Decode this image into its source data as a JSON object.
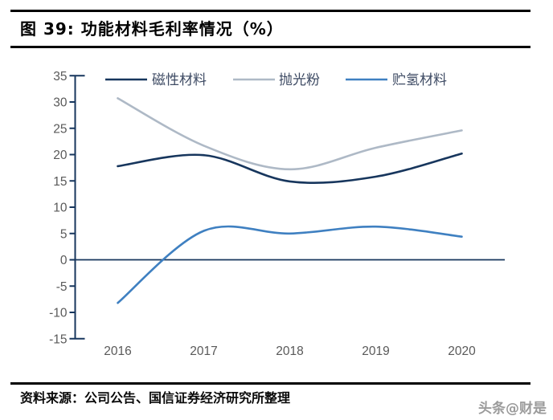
{
  "figure": {
    "title": "图 39: 功能材料毛利率情况（%）",
    "source": "资料来源：公司公告、国信证券经济研究所整理",
    "watermark": "头条@财是"
  },
  "chart_data": {
    "type": "line",
    "title": "功能材料毛利率情况（%）",
    "categories": [
      "2016",
      "2017",
      "2018",
      "2019",
      "2020"
    ],
    "series": [
      {
        "name": "磁性材料",
        "color": "#17365d",
        "values": [
          17.8,
          19.9,
          14.9,
          15.8,
          20.2
        ]
      },
      {
        "name": "抛光粉",
        "color": "#aeb9c6",
        "values": [
          30.7,
          21.7,
          17.2,
          21.3,
          24.6
        ]
      },
      {
        "name": "贮氢材料",
        "color": "#3f80c1",
        "values": [
          -8.2,
          5.5,
          5.0,
          6.3,
          4.4
        ]
      }
    ],
    "ylim": [
      -15,
      35
    ],
    "ytick_step": 5,
    "yticks": [
      35,
      30,
      25,
      20,
      15,
      10,
      5,
      0,
      -5,
      -10,
      -15
    ],
    "grid": false,
    "smooth": true,
    "legend_position": "top",
    "axis_color": "#17365d",
    "zero_line": true,
    "tick_label_color": "#595959",
    "legend_label_color": "#3d4a63"
  }
}
